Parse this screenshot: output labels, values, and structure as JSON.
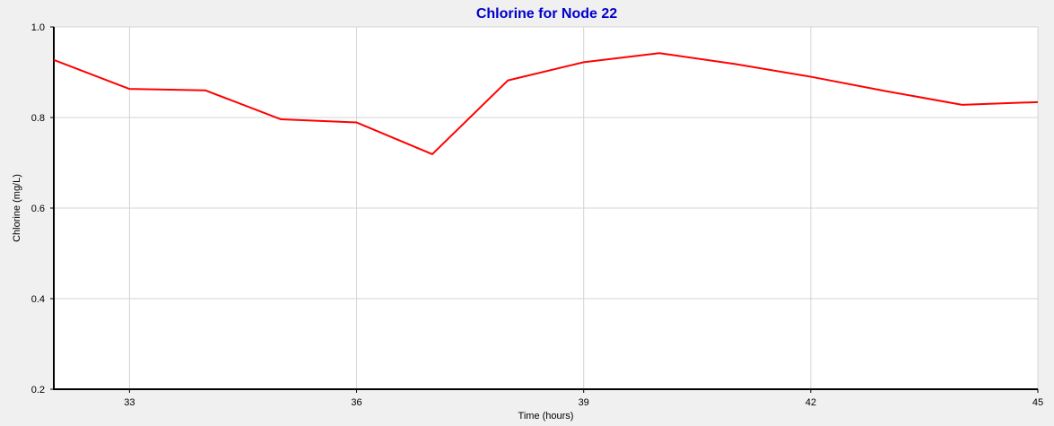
{
  "chart_data": {
    "type": "line",
    "title": "Chlorine for Node 22",
    "xlabel": "Time (hours)",
    "ylabel": "Chlorine (mg/L)",
    "xlim": [
      32,
      45
    ],
    "ylim": [
      0.2,
      1.0
    ],
    "x_ticks": [
      33,
      36,
      39,
      42,
      45
    ],
    "y_ticks": [
      0.2,
      0.4,
      0.6,
      0.8,
      1.0
    ],
    "x_tick_labels": [
      "33",
      "36",
      "39",
      "42",
      "45"
    ],
    "y_tick_labels": [
      "0.2",
      "0.4",
      "0.6",
      "0.8",
      "1.0"
    ],
    "grid": true,
    "series": [
      {
        "x": [
          32,
          33,
          34,
          35,
          36,
          37,
          38,
          39,
          40,
          41,
          42,
          43,
          44,
          45
        ],
        "y": [
          0.927,
          0.863,
          0.86,
          0.796,
          0.789,
          0.719,
          0.882,
          0.922,
          0.942,
          0.918,
          0.89,
          0.858,
          0.828,
          0.834
        ],
        "color": "#ff0000"
      }
    ]
  },
  "colors": {
    "title": "#0000cc",
    "line": "#ff0000",
    "grid": "#d4d4d4",
    "plot_bg": "#ffffff",
    "page_bg": "#f0f0f0"
  }
}
